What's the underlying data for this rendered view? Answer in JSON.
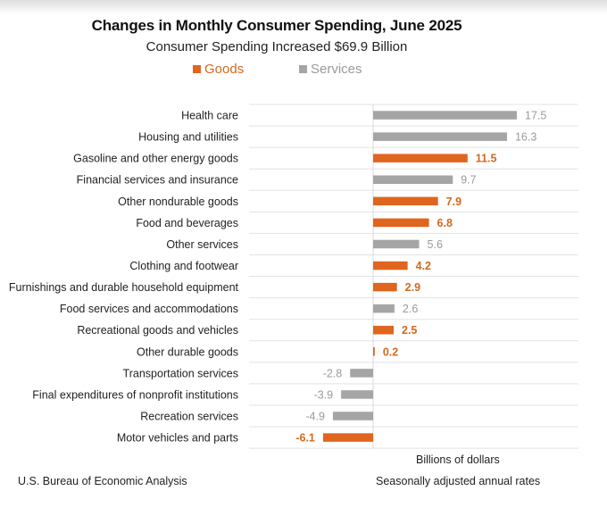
{
  "chart_data": {
    "type": "bar",
    "orientation": "horizontal",
    "title": "Changes in Monthly Consumer Spending, June 2025",
    "subtitle": "Consumer Spending Increased $69.9 Billion",
    "xlabel": "Billions of dollars",
    "ylabel": "",
    "xlim": [
      -15,
      25
    ],
    "grid": true,
    "legend": {
      "placement": "top-center",
      "entries": [
        {
          "name": "Goods",
          "color": "#e0651f"
        },
        {
          "name": "Services",
          "color": "#a5a5a5"
        }
      ]
    },
    "categories": [
      "Health care",
      "Housing and utilities",
      "Gasoline and other energy goods",
      "Financial services and insurance",
      "Other nondurable goods",
      "Food and beverages",
      "Other services",
      "Clothing and footwear",
      "Furnishings and durable household equipment",
      "Food services and accommodations",
      "Recreational goods and vehicles",
      "Other durable goods",
      "Transportation services",
      "Final expenditures of nonprofit institutions",
      "Recreation services",
      "Motor vehicles and parts"
    ],
    "values": [
      17.5,
      16.3,
      11.5,
      9.7,
      7.9,
      6.8,
      5.6,
      4.2,
      2.9,
      2.6,
      2.5,
      0.2,
      -2.8,
      -3.9,
      -4.9,
      -6.1
    ],
    "value_labels": [
      "17.5",
      "16.3",
      "11.5",
      "9.7",
      "7.9",
      "6.8",
      "5.6",
      "4.2",
      "2.9",
      "2.6",
      "2.5",
      "0.2",
      "-2.8",
      "-3.9",
      "-4.9",
      "-6.1"
    ],
    "groups": [
      "Services",
      "Services",
      "Goods",
      "Services",
      "Goods",
      "Goods",
      "Services",
      "Goods",
      "Goods",
      "Services",
      "Goods",
      "Goods",
      "Services",
      "Services",
      "Services",
      "Goods"
    ]
  },
  "footer": {
    "source": "U.S. Bureau of Economic Analysis",
    "units": "Billions of dollars",
    "rates": "Seasonally adjusted annual rates"
  },
  "colors": {
    "goods": "#e0651f",
    "services": "#a5a5a5",
    "goods_label": "#d2691e",
    "services_label": "#9a9a9a",
    "grid": "#e3e3e3"
  }
}
